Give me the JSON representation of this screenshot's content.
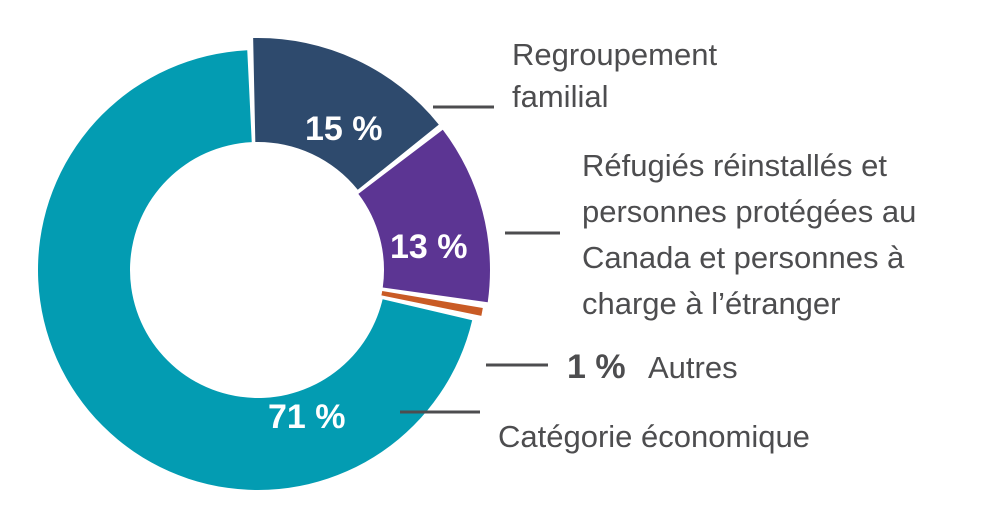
{
  "chart_data": {
    "type": "pie",
    "slices": [
      {
        "label": "Catégorie économique",
        "value": 71,
        "value_label": "71 %",
        "color": "#039cb2"
      },
      {
        "label": "Regroupement familial",
        "label_lines": [
          "Regroupement",
          "familial"
        ],
        "value": 15,
        "value_label": "15 %",
        "color": "#2e4a6d"
      },
      {
        "label": "Réfugiés réinstallés et personnes protégées au Canada et personnes à charge à l’étranger",
        "label_lines": [
          "Réfugiés réinstallés et",
          "personnes protégées au",
          "Canada et personnes à",
          "charge à l’étranger"
        ],
        "value": 13,
        "value_label": "13 %",
        "color": "#5c3593"
      },
      {
        "label": "Autres",
        "value": 1,
        "value_label": "1 %",
        "color": "#c95b25"
      }
    ]
  }
}
